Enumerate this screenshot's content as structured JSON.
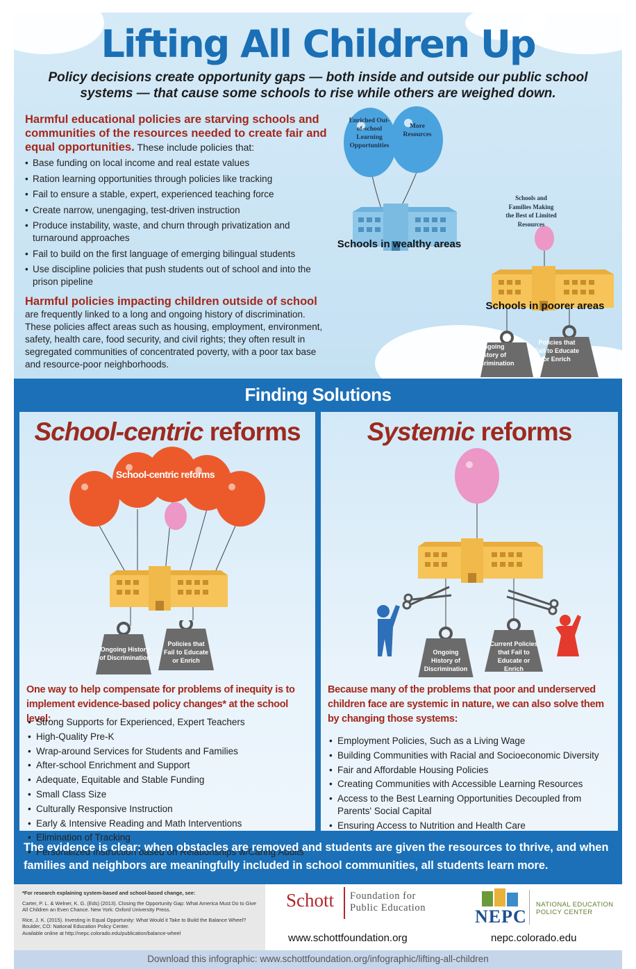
{
  "header": {
    "title": "Lifting All Children Up",
    "subtitle": "Policy decisions create opportunity gaps — both inside and outside our public school systems — that cause some schools to rise while others are weighed down."
  },
  "harmful_school": {
    "heading": "Harmful educational policies are starving schools and communities of the resources needed to create fair and equal opportunities.",
    "intro": "These include policies that:",
    "items": [
      "Base funding on local income and real estate values",
      "Ration learning opportunities through policies like tracking",
      "Fail to ensure a stable, expert, experienced teaching force",
      "Create narrow, unengaging, test-driven instruction",
      "Produce instability, waste, and churn through privatization and turnaround approaches",
      "Fail to build on the first language of emerging bilingual students",
      "Use discipline policies that push students out of school and into the prison pipeline"
    ]
  },
  "harmful_outside": {
    "heading": "Harmful policies impacting children outside of school",
    "body": "are frequently linked to a long and ongoing history of discrimination. These policies affect areas such as housing, employment, environment, safety, health care, food security, and civil rights; they often result in segregated communities of concentrated poverty, with a poor tax base and resource-poor neighborhoods."
  },
  "illustration": {
    "balloon_1": "Enriched Out-of-school Learning Opportunities",
    "balloon_2": "More Resources",
    "wealthy_label": "Schools in wealthy areas",
    "small_balloon": "Schools and Families Making the Best of Limited Resources",
    "poorer_label": "Schools in poorer areas",
    "weight_1": "Ongoing History of Discrimination",
    "weight_2": "Policies that Fail to Educate or Enrich"
  },
  "solutions": {
    "title": "Finding Solutions",
    "left": {
      "title_italic": "School-centric",
      "title_rest": " reforms",
      "balloon_banner": "School-centric reforms",
      "weight_1": "Ongoing History of Discrimination",
      "weight_2": "Policies that Fail to Educate or Enrich",
      "lead": "One way to help compensate for problems of inequity is to implement evidence-based policy changes* at the school level:",
      "items": [
        "Strong Supports for Experienced, Expert Teachers",
        "High-Quality Pre-K",
        "Wrap-around Services for Students and Families",
        "After-school Enrichment and Support",
        "Adequate, Equitable and Stable Funding",
        "Small Class Size",
        "Culturally Responsive Instruction",
        "Early & Intensive Reading and Math Interventions",
        "Elimination of Tracking",
        "Personalized Instruction based on Relationships w/Caring Adults"
      ]
    },
    "right": {
      "title_italic": "Systemic",
      "title_rest": " reforms",
      "weight_1": "Ongoing History of Discrimination",
      "weight_2": "Current Policies that Fail to Educate or Enrich",
      "lead": "Because many of the problems that poor and underserved children face are systemic in nature, we can also solve them by changing those systems:",
      "items": [
        "Employment Policies, Such as a Living Wage",
        "Building Communities with Racial and Socioeconomic Diversity",
        "Fair and Affordable Housing Policies",
        "Creating Communities with Accessible Learning Resources",
        "Access to the Best Learning Opportunities Decoupled from Parents' Social Capital",
        "Ensuring Access to Nutrition and Health Care"
      ]
    },
    "evidence": "The evidence is clear: when obstacles are removed and students are given the resources to thrive, and when families and neighbors are meaningfully included in school communities, all students learn more."
  },
  "footer": {
    "refs_heading": "*For research explaining system-based and school-based change, see:",
    "ref_1": "Carter, P. L. & Welner, K. G. (Eds) (2013). Closing the Opportunity Gap: What America Must Do to Give All Children an Even Chance. New York: Oxford University Press.",
    "ref_2": "Rice, J. K. (2015). Investing in Equal Opportunity: What Would it Take to Build the Balance Wheel? Boulder, CO: National Education Policy Center.",
    "ref_3": "Available online at http://nepc.colorado.edu/publication/balance-wheel",
    "schott_logo": "Schott",
    "schott_line1": "Foundation for",
    "schott_line2": "Public Education",
    "schott_url": "www.schottfoundation.org",
    "nepc_logo": "NEPC",
    "nepc_line1": "NATIONAL EDUCATION",
    "nepc_line2": "POLICY CENTER",
    "nepc_url": "nepc.colorado.edu",
    "download": "Download this infographic: www.schottfoundation.org/infographic/lifting-all-children"
  },
  "colors": {
    "title_blue": "#1a6fb5",
    "heading_red": "#a5281b",
    "panel_blue": "#1c70b7",
    "balloon_blue": "#4aa3df",
    "balloon_orange": "#ec5a2c",
    "balloon_pink": "#ec97c6",
    "school_blue": "#8fc7e8",
    "school_yellow": "#f6c458",
    "weight_gray": "#6b6b6b"
  }
}
